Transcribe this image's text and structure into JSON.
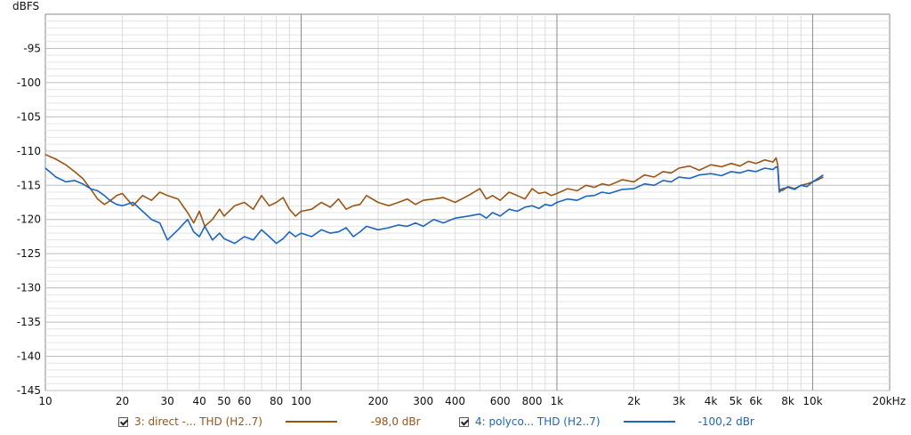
{
  "chart_data": {
    "type": "line",
    "ylabel": "dBFS",
    "x_scale": "log",
    "xlim": [
      10,
      20000
    ],
    "ylim": [
      -145,
      -90
    ],
    "grid": true,
    "x_ticks": [
      {
        "v": 10,
        "t": "10"
      },
      {
        "v": 20,
        "t": "20"
      },
      {
        "v": 30,
        "t": "30"
      },
      {
        "v": 40,
        "t": "40"
      },
      {
        "v": 50,
        "t": "50"
      },
      {
        "v": 60,
        "t": "60"
      },
      {
        "v": 80,
        "t": "80"
      },
      {
        "v": 100,
        "t": "100"
      },
      {
        "v": 200,
        "t": "200"
      },
      {
        "v": 300,
        "t": "300"
      },
      {
        "v": 400,
        "t": "400"
      },
      {
        "v": 600,
        "t": "600"
      },
      {
        "v": 800,
        "t": "800"
      },
      {
        "v": 1000,
        "t": "1k"
      },
      {
        "v": 2000,
        "t": "2k"
      },
      {
        "v": 3000,
        "t": "3k"
      },
      {
        "v": 4000,
        "t": "4k"
      },
      {
        "v": 5000,
        "t": "5k"
      },
      {
        "v": 6000,
        "t": "6k"
      },
      {
        "v": 8000,
        "t": "8k"
      },
      {
        "v": 10000,
        "t": "10k"
      },
      {
        "v": 20000,
        "t": "20kHz"
      }
    ],
    "y_ticks": [
      {
        "v": -95,
        "t": "-95"
      },
      {
        "v": -100,
        "t": "-100"
      },
      {
        "v": -105,
        "t": "-105"
      },
      {
        "v": -110,
        "t": "-110"
      },
      {
        "v": -115,
        "t": "-115"
      },
      {
        "v": -120,
        "t": "-120"
      },
      {
        "v": -125,
        "t": "-125"
      },
      {
        "v": -130,
        "t": "-130"
      },
      {
        "v": -135,
        "t": "-135"
      },
      {
        "v": -140,
        "t": "-140"
      },
      {
        "v": -145,
        "t": "-145"
      }
    ],
    "series": [
      {
        "name": "3: direct -... THD (H2..7)",
        "color": "#9a5514",
        "x": [
          10,
          11,
          12,
          13,
          14,
          15,
          16,
          17,
          18,
          19,
          20,
          22,
          24,
          26,
          28,
          30,
          33,
          36,
          38,
          40,
          42,
          45,
          48,
          50,
          55,
          60,
          65,
          70,
          75,
          80,
          85,
          90,
          95,
          100,
          110,
          120,
          130,
          140,
          150,
          160,
          170,
          180,
          200,
          220,
          240,
          260,
          280,
          300,
          330,
          360,
          400,
          450,
          500,
          530,
          560,
          600,
          650,
          700,
          750,
          800,
          850,
          900,
          950,
          1000,
          1100,
          1200,
          1300,
          1400,
          1500,
          1600,
          1800,
          2000,
          2200,
          2400,
          2600,
          2800,
          3000,
          3300,
          3600,
          4000,
          4400,
          4800,
          5200,
          5600,
          6000,
          6500,
          7000,
          7200,
          7300,
          7400,
          7600,
          8000,
          8500,
          9000,
          9500,
          10000,
          10500,
          11000
        ],
        "y": [
          -110.5,
          -111.2,
          -112.0,
          -113.0,
          -114.0,
          -115.5,
          -117.0,
          -117.8,
          -117.2,
          -116.5,
          -116.2,
          -118.0,
          -116.5,
          -117.2,
          -116.0,
          -116.5,
          -117.0,
          -119.0,
          -120.5,
          -118.8,
          -121.0,
          -120.0,
          -118.5,
          -119.5,
          -118.0,
          -117.5,
          -118.5,
          -116.5,
          -118.0,
          -117.5,
          -116.8,
          -118.5,
          -119.5,
          -118.8,
          -118.5,
          -117.5,
          -118.2,
          -117.0,
          -118.5,
          -118.0,
          -117.8,
          -116.5,
          -117.5,
          -118.0,
          -117.5,
          -117.0,
          -117.8,
          -117.2,
          -117.0,
          -116.8,
          -117.5,
          -116.5,
          -115.5,
          -117.0,
          -116.5,
          -117.2,
          -116.0,
          -116.5,
          -117.0,
          -115.5,
          -116.2,
          -116.0,
          -116.5,
          -116.2,
          -115.5,
          -115.8,
          -115.0,
          -115.3,
          -114.8,
          -115.0,
          -114.2,
          -114.5,
          -113.5,
          -113.8,
          -113.0,
          -113.2,
          -112.5,
          -112.2,
          -112.8,
          -112.0,
          -112.3,
          -111.8,
          -112.2,
          -111.5,
          -111.8,
          -111.3,
          -111.6,
          -111.0,
          -112.0,
          -115.5,
          -115.8,
          -115.2,
          -115.5,
          -115.0,
          -114.8,
          -114.5,
          -114.2,
          -113.8
        ]
      },
      {
        "name": "4: polyco... THD (H2..7)",
        "color": "#1a66c0",
        "x": [
          10,
          11,
          12,
          13,
          14,
          15,
          16,
          17,
          18,
          19,
          20,
          22,
          24,
          26,
          28,
          30,
          33,
          36,
          38,
          40,
          42,
          45,
          48,
          50,
          55,
          60,
          65,
          70,
          75,
          80,
          85,
          90,
          95,
          100,
          110,
          120,
          130,
          140,
          150,
          160,
          170,
          180,
          200,
          220,
          240,
          260,
          280,
          300,
          330,
          360,
          400,
          450,
          500,
          530,
          560,
          600,
          650,
          700,
          750,
          800,
          850,
          900,
          950,
          1000,
          1100,
          1200,
          1300,
          1400,
          1500,
          1600,
          1800,
          2000,
          2200,
          2400,
          2600,
          2800,
          3000,
          3300,
          3600,
          4000,
          4400,
          4800,
          5200,
          5600,
          6000,
          6500,
          7000,
          7200,
          7300,
          7400,
          7600,
          8000,
          8500,
          9000,
          9500,
          10000,
          10500,
          11000
        ],
        "y": [
          -112.5,
          -113.8,
          -114.5,
          -114.3,
          -114.8,
          -115.5,
          -115.8,
          -116.5,
          -117.3,
          -117.8,
          -118.0,
          -117.5,
          -118.8,
          -120.0,
          -120.5,
          -123.0,
          -121.5,
          -120.0,
          -121.8,
          -122.5,
          -121.0,
          -123.0,
          -122.0,
          -122.8,
          -123.5,
          -122.5,
          -123.0,
          -121.5,
          -122.5,
          -123.5,
          -122.8,
          -121.8,
          -122.5,
          -122.0,
          -122.5,
          -121.5,
          -122.0,
          -121.8,
          -121.2,
          -122.5,
          -121.8,
          -121.0,
          -121.5,
          -121.2,
          -120.8,
          -121.0,
          -120.5,
          -121.0,
          -120.0,
          -120.5,
          -119.8,
          -119.5,
          -119.2,
          -119.8,
          -119.0,
          -119.5,
          -118.5,
          -118.8,
          -118.2,
          -118.0,
          -118.4,
          -117.8,
          -118.0,
          -117.5,
          -117.0,
          -117.2,
          -116.6,
          -116.5,
          -116.0,
          -116.2,
          -115.6,
          -115.5,
          -114.8,
          -115.0,
          -114.3,
          -114.5,
          -113.8,
          -114.0,
          -113.5,
          -113.3,
          -113.6,
          -113.0,
          -113.2,
          -112.8,
          -113.0,
          -112.5,
          -112.7,
          -112.3,
          -112.5,
          -116.0,
          -115.5,
          -115.3,
          -115.6,
          -115.0,
          -115.2,
          -114.5,
          -114.0,
          -113.5
        ]
      }
    ],
    "legend": [
      {
        "label": "3: direct -... THD (H2..7)",
        "value": "-98,0 dBr",
        "color": "#9a5514",
        "checked": true
      },
      {
        "label": "4: polyco... THD (H2..7)",
        "value": "-100,2 dBr",
        "color": "#1a66c0",
        "checked": true
      }
    ]
  }
}
